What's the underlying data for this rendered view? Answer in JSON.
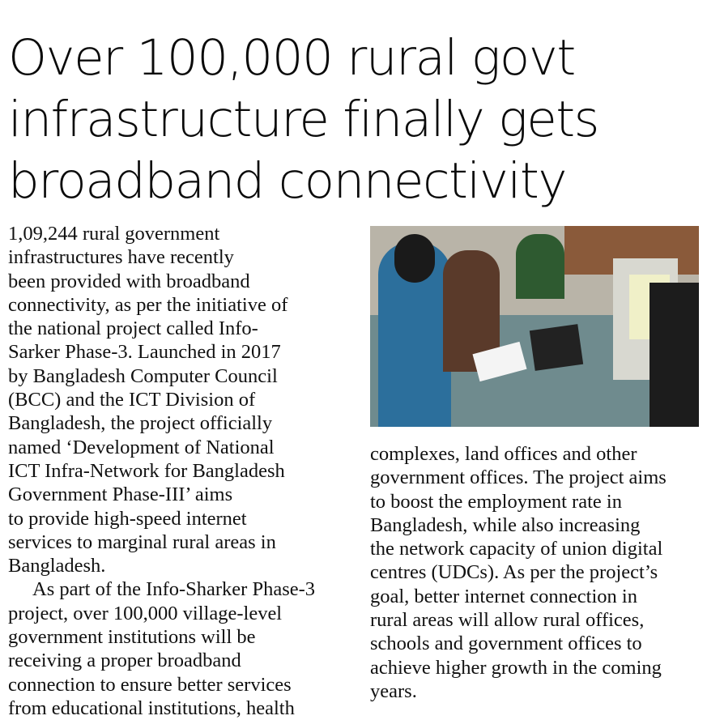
{
  "headline": {
    "lines": [
      "Over 100,000 rural govt",
      "infrastructure finally gets",
      "broadband connectivity"
    ]
  },
  "body_left": {
    "lines": [
      "1,09,244 rural government",
      "infrastructures have recently",
      "been provided with broadband",
      "connectivity, as per the initiative of",
      "the national project called Info-",
      "Sarker Phase-3. Launched in 2017",
      "by Bangladesh Computer Council",
      "(BCC) and the ICT Division of",
      "Bangladesh, the project officially",
      "named  ‘Development of National",
      "ICT Infra-Network for Bangladesh",
      "Government Phase-III’ aims",
      "to provide high-speed internet",
      "services to marginal rural areas in",
      "Bangladesh.",
      "As part of the Info-Sharker Phase-3",
      "project, over 100,000 village-level",
      "government institutions will be",
      "receiving a proper broadband",
      "connection to ensure better services",
      "from educational institutions, health"
    ]
  },
  "body_right": {
    "lines": [
      "complexes, land offices and other",
      "government offices. The project aims",
      "to boost the employment rate in",
      "Bangladesh, while also increasing",
      "the network capacity of union digital",
      "centres (UDCs). As per the project’s",
      "goal, better internet connection in",
      "rural areas will allow rural offices,",
      "schools and government offices to",
      "achieve higher growth in the coming",
      "years."
    ]
  }
}
